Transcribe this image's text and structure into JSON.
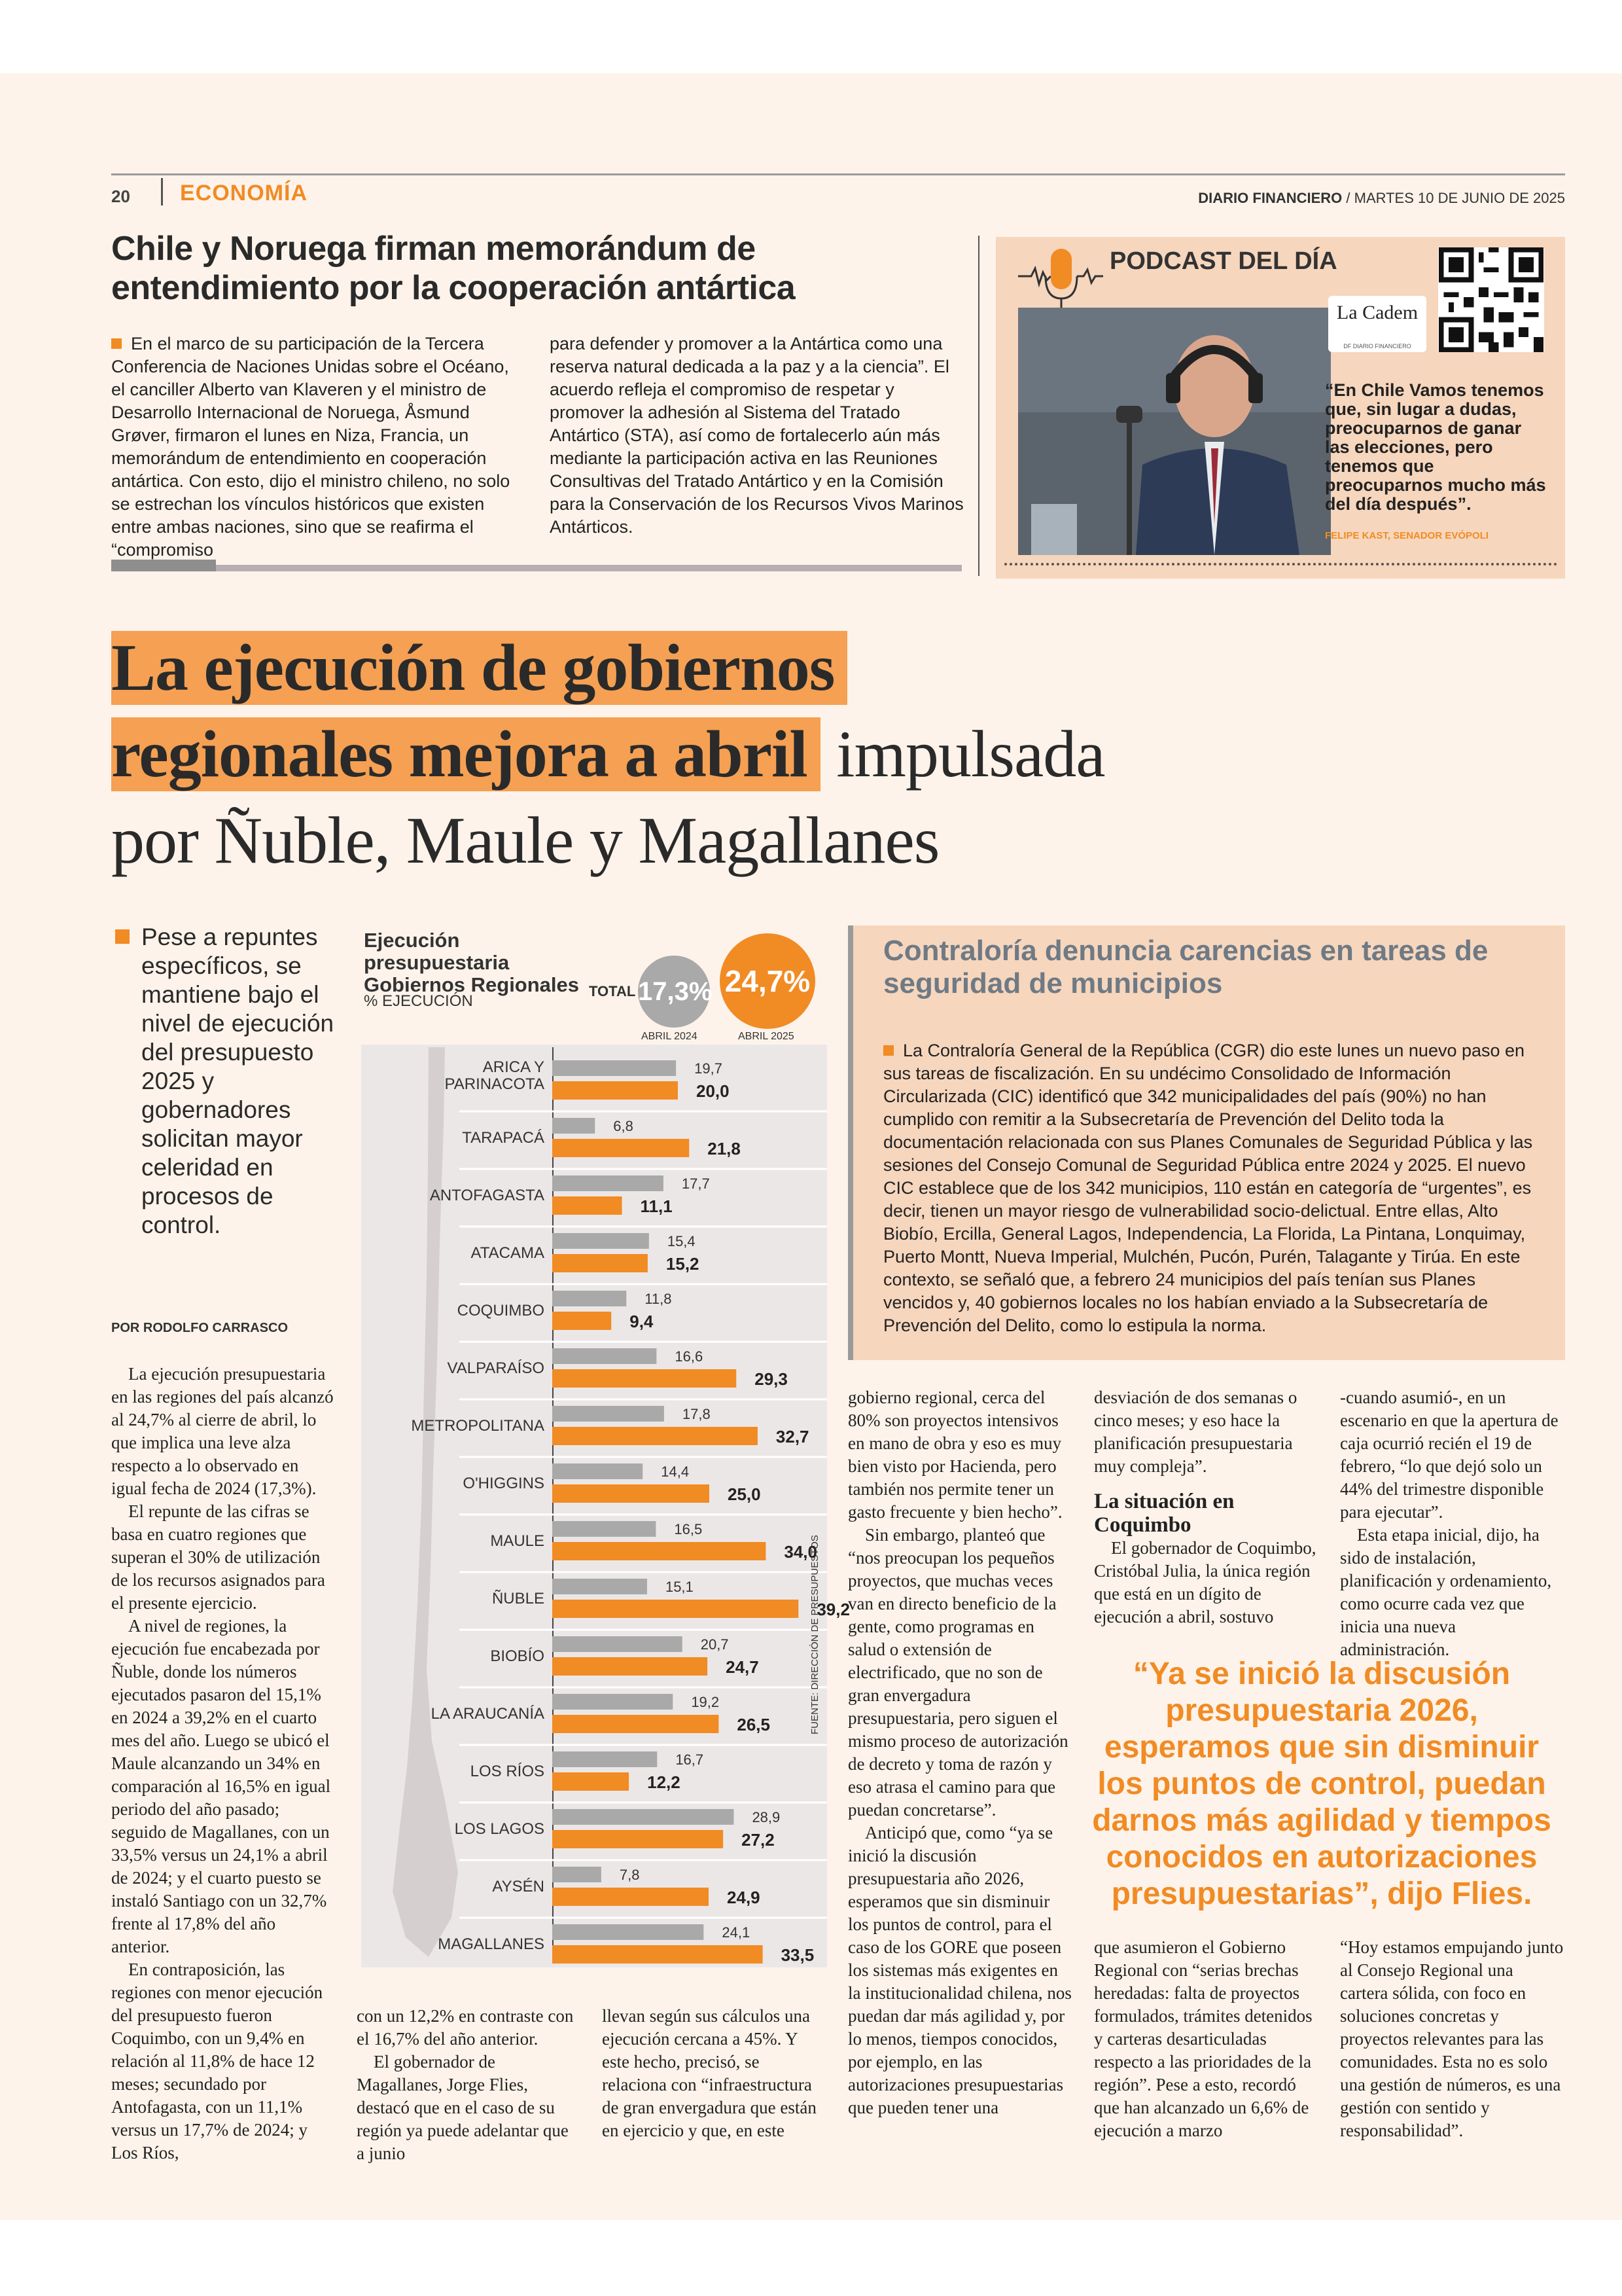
{
  "page": {
    "number": "20",
    "section": "ECONOMÍA",
    "masthead_name": "DIARIO FINANCIERO",
    "masthead_date": " / MARTES 10 DE JUNIO DE 2025"
  },
  "top_story": {
    "headline": "Chile y Noruega firman memorándum de entendimiento por la cooperación antártica",
    "col1": "En el marco de su participación de la Tercera Conferencia de Naciones Unidas sobre el Océano, el canciller Alberto van Klaveren y el ministro de Desarrollo Internacional de Noruega, Åsmund Grøver, firmaron el lunes en Niza, Francia, un memorándum de entendimiento en cooperación antártica. Con esto, dijo el ministro chileno, no solo se estrechan los vínculos históricos que existen entre ambas naciones, sino que se reafirma el “compromiso",
    "col2": "para defender y promover a la Antártica como una reserva natural dedicada a la paz y a la ciencia”. El acuerdo refleja el compromiso de respetar y promover la adhesión al Sistema del Tratado Antártico (STA), así como de fortalecerlo aún más mediante la participación activa en las Reuniones Consultivas del Tratado Antártico y en la Comisión para la Conservación de los Recursos Vivos Marinos Antárticos."
  },
  "podcast": {
    "title": "PODCAST DEL DÍA",
    "brand": "La Cadem",
    "brand_sub": "DF DIARIO FINANCIERO",
    "quote": "“En Chile Vamos tenemos que, sin lugar a dudas, preocuparnos de ganar las elecciones, pero tenemos que preocuparnos mucho más del día después”.",
    "caption": "FELIPE KAST, SENADOR EVÓPOLI"
  },
  "main": {
    "headline_highlight_1": "La ejecución de gobiernos",
    "headline_highlight_2": "regionales mejora a abril",
    "headline_rest_2": " impulsada",
    "headline_line3": "por Ñuble, Maule y Magallanes",
    "lead": "Pese a repuntes específicos, se mantiene bajo el nivel de ejecución del presupuesto 2025 y gobernadores solicitan mayor celeridad en procesos de control.",
    "byline": "POR RODOLFO CARRASCO",
    "col1_p1": "La ejecución presupuestaria en las regiones del país alcanzó al 24,7% al cierre de abril, lo que implica una leve alza respecto a lo observado en igual fecha de 2024 (17,3%).",
    "col1_p2": "El repunte de las cifras se basa en cuatro regiones que superan el 30% de utilización de los recursos asignados para el presente ejercicio.",
    "col1_p3": "A nivel de regiones, la ejecución fue encabezada por Ñuble, donde los números ejecutados pasaron del 15,1% en 2024 a 39,2% en el cuarto mes del año. Luego se ubicó el Maule alcanzando un 34% en comparación al 16,5% en igual periodo del año pasado; seguido de Magallanes, con un 33,5% versus un 24,1% a abril de 2024; y el cuarto puesto se instaló Santiago con un 32,7% frente al 17,8% del año anterior.",
    "col1_p4": "En contraposición, las regiones con menor ejecución del presupuesto fueron Coquimbo, con un 9,4% en relación al 11,8% de hace 12 meses; secundado por Antofagasta, con un 11,1% versus un 17,7% de 2024; y Los Ríos,",
    "col2_p1": "con un 12,2% en contraste con el 16,7% del año anterior.",
    "col2_p2": "El gobernador de Magallanes, Jorge Flies, destacó que en el caso de su región ya puede adelantar que a junio",
    "col3_p1": "llevan según sus cálculos una ejecución cercana a 45%. Y este hecho, precisó, se relaciona con “infraestructura de gran envergadura que están en ejercicio y que, en este",
    "col4_p1": "gobierno regional, cerca del 80% son proyectos intensivos en mano de obra y eso es muy bien visto por Hacienda, pero también nos permite tener un gasto frecuente y bien hecho”.",
    "col4_p2": "Sin embargo, planteó que “nos preocupan los pequeños proyectos, que muchas veces van en directo beneficio de la gente, como programas en salud o extensión de electrificado, que no son de gran envergadura presupuestaria, pero siguen el mismo proceso de autorización de decreto y toma de razón y eso atrasa el camino para que puedan concretarse”.",
    "col4_p3": "Anticipó que, como “ya se inició la discusión presupuestaria año 2026, esperamos que sin disminuir los puntos de control, para el caso de los GORE que poseen los sistemas más exigentes en la institucionalidad chilena, nos puedan dar más agilidad y, por lo menos, tiempos conocidos, por ejemplo, en las autorizaciones presupuestarias que pueden tener una",
    "col5_p1": "desviación de dos semanas o cinco meses; y eso hace la planificación presupuestaria muy compleja”.",
    "col5_subhead": "La situación en Coquimbo",
    "col5_p2": "El gobernador de Coquimbo, Cristóbal Julia, la única región que está en un dígito de ejecución a abril, sostuvo",
    "col5_p3": "que asumieron el Gobierno Regional con “serias brechas heredadas: falta de proyectos formulados, trámites detenidos y carteras desarticuladas respecto a las prioridades de la región”. Pese a esto, recordó que han alcanzado un 6,6% de ejecución a marzo",
    "col6_p1": "-cuando asumió-, en un escenario en que la apertura de caja ocurrió recién el 19 de febrero, “lo que dejó solo un 44% del trimestre disponible para ejecutar”.",
    "col6_p2": "Esta etapa inicial, dijo, ha sido de instalación, planificación y ordenamiento, como ocurre cada vez que inicia una nueva administración.",
    "col6_p3": "“Hoy estamos empujando junto al Consejo Regional una cartera sólida, con foco en soluciones concretas y proyectos relevantes para las comunidades. Esta no es solo una gestión de números, es una gestión con sentido y responsabilidad”.",
    "pull_quote": "“Ya se inició la discusión presupuestaria 2026, esperamos que sin disminuir los puntos de control, puedan darnos más agilidad y tiempos conocidos en autorizaciones presupuestarias”, dijo Flies."
  },
  "sidebar_box": {
    "title": "Contraloría denuncia carencias en tareas de seguridad de municipios",
    "text": "La Contraloría General de la República (CGR) dio este lunes un nuevo paso en sus tareas de fiscalización. En su undécimo Consolidado de Información Circularizada (CIC) identificó que 342 municipalidades del país (90%) no han cumplido con remitir a la Subsecretaría de Prevención del Delito toda la documentación relacionada con sus Planes Comunales de Seguridad Pública y las sesiones del Consejo Comunal de Seguridad Pública entre 2024 y 2025. El nuevo CIC establece que de los 342 municipios, 110 están en categoría de “urgentes”, es decir, tienen un mayor riesgo de vulnerabilidad socio-delictual. Entre ellas, Alto Biobío, Ercilla, General Lagos, Independencia, La Florida, La Pintana, Lonquimay, Puerto Montt, Nueva Imperial, Mulchén, Pucón, Purén, Talagante y Tirúa. En este contexto, se señaló que, a febrero 24 municipios del país tenían sus Planes vencidos y, 40 gobiernos locales no los habían enviado a la Subsecretaría de Prevención del Delito, como lo estipula la norma."
  },
  "chart_data": {
    "type": "bar",
    "title": "Ejecución presupuestaria Gobiernos Regionales",
    "subtitle": "% EJECUCIÓN",
    "total_label": "TOTAL",
    "total_2024": "17,3%",
    "total_2025": "24,7%",
    "period_2024": "ABRIL 2024",
    "period_2025": "ABRIL 2025",
    "source": "FUENTE: DIRECCIÓN DE PRESUPUESTOS",
    "xlim": [
      0,
      40
    ],
    "colors": {
      "abril_2024": "#a9a9a9",
      "abril_2025": "#f18b24"
    },
    "categories": [
      "ARICA Y PARINACOTA",
      "TARAPACÁ",
      "ANTOFAGASTA",
      "ATACAMA",
      "COQUIMBO",
      "VALPARAÍSO",
      "METROPOLITANA",
      "O'HIGGINS",
      "MAULE",
      "ÑUBLE",
      "BIOBÍO",
      "LA ARAUCANÍA",
      "LOS RÍOS",
      "LOS LAGOS",
      "AYSÉN",
      "MAGALLANES"
    ],
    "series": [
      {
        "name": "ABRIL 2024",
        "values": [
          19.7,
          6.8,
          17.7,
          15.4,
          11.8,
          16.6,
          17.8,
          14.4,
          16.5,
          15.1,
          20.7,
          19.2,
          16.7,
          28.9,
          7.8,
          24.1
        ],
        "labels": [
          "19,7",
          "6,8",
          "17,7",
          "15,4",
          "11,8",
          "16,6",
          "17,8",
          "14,4",
          "16,5",
          "15,1",
          "20,7",
          "19,2",
          "16,7",
          "28,9",
          "7,8",
          "24,1"
        ]
      },
      {
        "name": "ABRIL 2025",
        "values": [
          20.0,
          21.8,
          11.1,
          15.2,
          9.4,
          29.3,
          32.7,
          25.0,
          34.0,
          39.2,
          24.7,
          26.5,
          12.2,
          27.2,
          24.9,
          33.5
        ],
        "labels": [
          "20,0",
          "21,8",
          "11,1",
          "15,2",
          "9,4",
          "29,3",
          "32,7",
          "25,0",
          "34,0",
          "39,2",
          "24,7",
          "26,5",
          "12,2",
          "27,2",
          "24,9",
          "33,5"
        ]
      }
    ]
  }
}
